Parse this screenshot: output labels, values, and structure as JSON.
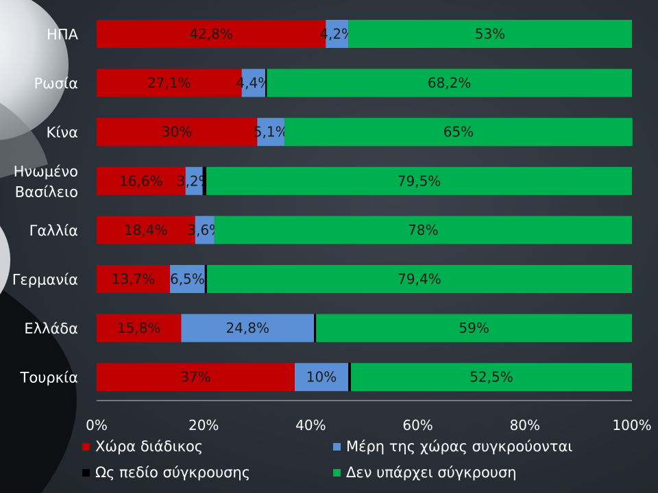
{
  "chart_data": {
    "type": "bar",
    "orientation": "horizontal",
    "stacked": "percent",
    "categories": [
      "ΗΠΑ",
      "Ρωσία",
      "Κίνα",
      "Ηνωμένο Βασίλειο",
      "Γαλλία",
      "Γερμανία",
      "Ελλάδα",
      "Τουρκία"
    ],
    "series": [
      {
        "name": "Χώρα διάδικος",
        "color": "#c00000",
        "values": [
          42.8,
          27.1,
          30,
          16.6,
          18.4,
          13.7,
          15.8,
          37
        ],
        "labels": [
          "42,8%",
          "27,1%",
          "30%",
          "16,6%",
          "18,4%",
          "13,7%",
          "15,8%",
          "37%"
        ]
      },
      {
        "name": "Μέρη της χώρας συγκρούονται",
        "color": "#5b8fd6",
        "values": [
          4.2,
          4.4,
          5.1,
          3.2,
          3.6,
          6.5,
          24.8,
          10
        ],
        "labels": [
          "4,2%",
          "4,4%",
          "5,1%",
          "3,2%",
          "3,6%",
          "6,5%",
          "24,8%",
          "10%"
        ]
      },
      {
        "name": "Ως πεδίο σύγκρουσης",
        "color": "#000000",
        "values": [
          0,
          0.3,
          0,
          0.7,
          0,
          0.4,
          0.4,
          0.5
        ],
        "labels": []
      },
      {
        "name": "Δεν υπάρχει σύγκρουση",
        "color": "#00b050",
        "values": [
          53,
          68.2,
          65,
          79.5,
          78,
          79.4,
          59,
          52.5
        ],
        "labels": [
          "53%",
          "68,2%",
          "65%",
          "79,5%",
          "78%",
          "79,4%",
          "59%",
          "52,5%"
        ]
      }
    ],
    "xticks": [
      "0%",
      "20%",
      "40%",
      "60%",
      "80%",
      "100%"
    ],
    "xlim": [
      0,
      100
    ],
    "grid": false,
    "legend_position": "bottom"
  }
}
